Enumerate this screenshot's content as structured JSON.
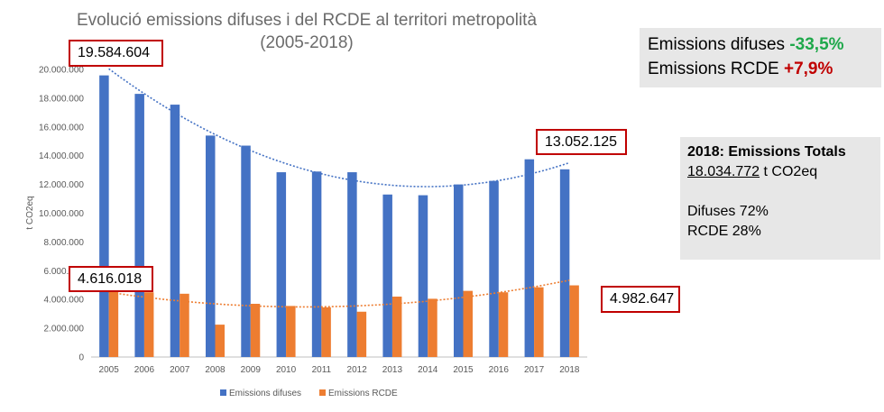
{
  "title_line1": "Evolució emissions difuses i del RCDE al territori metropolità",
  "title_line2": "(2005-2018)",
  "callouts": {
    "difuses_2005": "19.584.604",
    "difuses_2018": "13.052.125",
    "rcde_2005": "4.616.018",
    "rcde_2018": "4.982.647"
  },
  "summary": {
    "difuses_label": "Emissions difuses",
    "difuses_change": "-33,5%",
    "rcde_label": "Emissions RCDE",
    "rcde_change": "+7,9%"
  },
  "totals": {
    "heading": "2018: Emissions Totals",
    "total_value": "18.034.772",
    "total_unit": " t CO2eq",
    "difuses_share": "Difuses 72%",
    "rcde_share": "RCDE 28%"
  },
  "colors": {
    "difuses": "#4472c4",
    "rcde": "#ed7d31",
    "axis": "#bfbfbf",
    "tick_text": "#595959"
  },
  "chart_data": {
    "type": "bar",
    "title": "Evolució emissions difuses i del RCDE al territori metropolità (2005-2018)",
    "xlabel": "",
    "ylabel": "t CO2eq",
    "ylim": [
      0,
      20000000
    ],
    "yticks": [
      0,
      2000000,
      4000000,
      6000000,
      8000000,
      10000000,
      12000000,
      14000000,
      16000000,
      18000000,
      20000000
    ],
    "ytick_labels": [
      "0",
      "2.000.000",
      "4.000.000",
      "6.000.000",
      "8.000.000",
      "10.000.000",
      "12.000.000",
      "14.000.000",
      "16.000.000",
      "18.000.000",
      "20.000.000"
    ],
    "categories": [
      "2005",
      "2006",
      "2007",
      "2008",
      "2009",
      "2010",
      "2011",
      "2012",
      "2013",
      "2014",
      "2015",
      "2016",
      "2017",
      "2018"
    ],
    "series": [
      {
        "name": "Emissions difuses",
        "values": [
          19584604,
          18300000,
          17550000,
          15400000,
          14700000,
          12850000,
          12900000,
          12850000,
          11300000,
          11250000,
          12000000,
          12250000,
          13750000,
          13052125
        ],
        "trendline": "polynomial"
      },
      {
        "name": "Emissions RCDE",
        "values": [
          4616018,
          4500000,
          4400000,
          2250000,
          3700000,
          3550000,
          3450000,
          3150000,
          4200000,
          4050000,
          4600000,
          4500000,
          4850000,
          4982647
        ],
        "trendline": "polynomial"
      }
    ],
    "legend_position": "bottom"
  }
}
